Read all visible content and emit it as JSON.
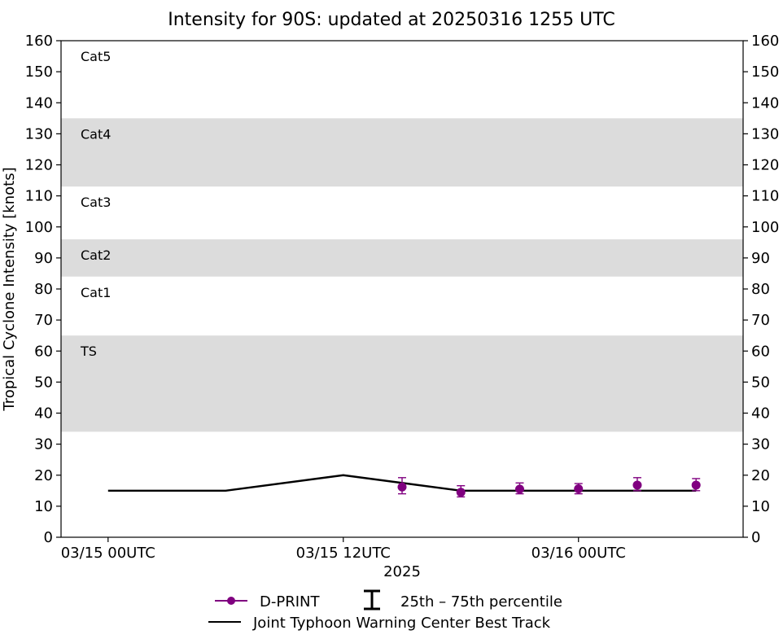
{
  "chart_data": {
    "type": "line",
    "title": "Intensity for 90S: updated at 20250316 1255 UTC",
    "xlabel": "2025",
    "ylabel": "Tropical Cyclone Intensity [knots]",
    "ylim": [
      0,
      160
    ],
    "y_ticks": [
      0,
      10,
      20,
      30,
      40,
      50,
      60,
      70,
      80,
      90,
      100,
      110,
      120,
      130,
      140,
      150,
      160
    ],
    "x_range_hours": [
      -2.4,
      32.4
    ],
    "x_ticks": [
      {
        "hour": 0,
        "label": "03/15 00UTC"
      },
      {
        "hour": 12,
        "label": "03/15 12UTC"
      },
      {
        "hour": 24,
        "label": "03/16 00UTC"
      }
    ],
    "category_bands": [
      {
        "label": "TS",
        "min": 34,
        "max": 65,
        "shaded": true
      },
      {
        "label": "Cat1",
        "min": 65,
        "max": 84,
        "shaded": false
      },
      {
        "label": "Cat2",
        "min": 84,
        "max": 96,
        "shaded": true
      },
      {
        "label": "Cat3",
        "min": 96,
        "max": 113,
        "shaded": false
      },
      {
        "label": "Cat4",
        "min": 113,
        "max": 135,
        "shaded": true
      },
      {
        "label": "Cat5",
        "min": 135,
        "max": 160,
        "shaded": false
      }
    ],
    "series": [
      {
        "name": "Joint Typhoon Warning Center Best Track",
        "color": "#000000",
        "x_hours": [
          0,
          6,
          12,
          18,
          24,
          30
        ],
        "values": [
          15,
          15,
          20,
          15,
          15,
          15
        ]
      },
      {
        "name": "D-PRINT",
        "color": "#800080",
        "x_hours": [
          15,
          18,
          21,
          24,
          27,
          30
        ],
        "values": [
          16.2,
          14.5,
          15.5,
          15.6,
          16.8,
          16.8
        ],
        "p25": [
          14.0,
          13.0,
          14.0,
          14.0,
          15.0,
          15.0
        ],
        "p75": [
          19.2,
          16.6,
          17.5,
          17.3,
          19.2,
          18.9
        ]
      }
    ],
    "legend": {
      "position": "bottom",
      "percentile_label": "25th – 75th percentile"
    },
    "grid": false
  }
}
